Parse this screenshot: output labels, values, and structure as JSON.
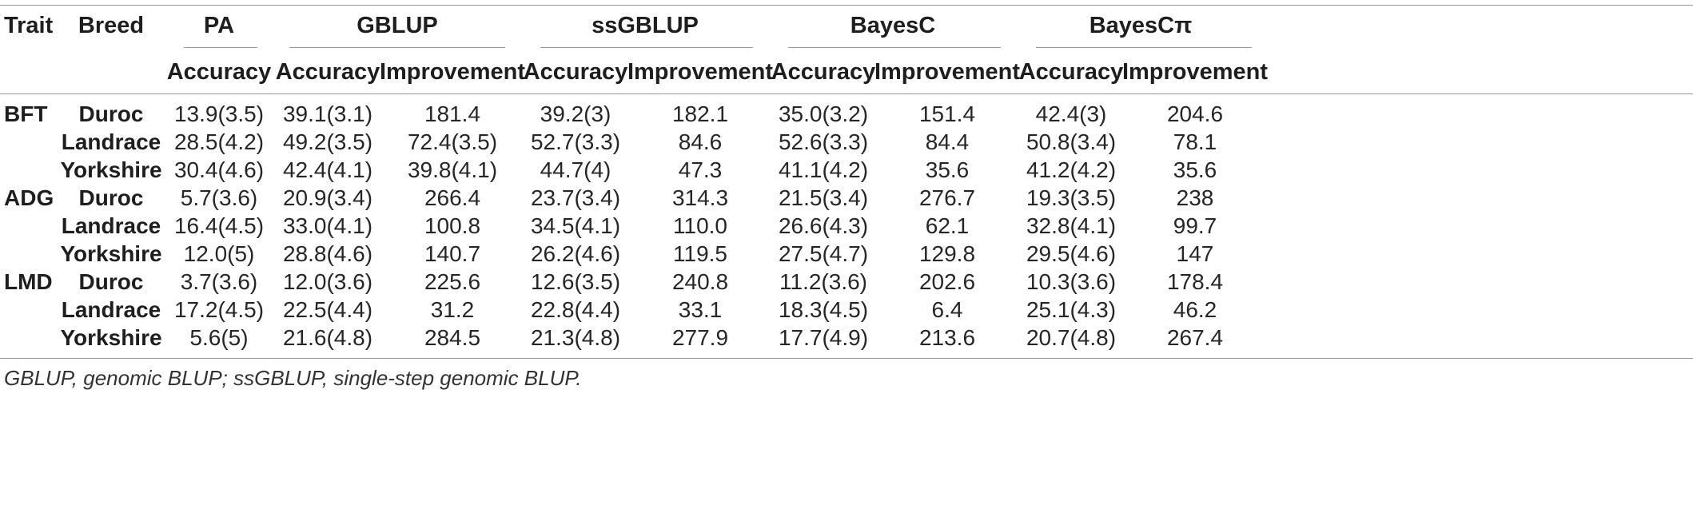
{
  "header": {
    "trait": "Trait",
    "breed": "Breed",
    "methods": [
      "PA",
      "GBLUP",
      "ssGBLUP",
      "BayesC",
      "BayesCπ"
    ],
    "subheaders": [
      "Accuracy",
      "Accuracy",
      "Improvement",
      "Accuracy",
      "Improvement",
      "Accuracy",
      "Improvement",
      "Accuracy",
      "Improvement"
    ]
  },
  "rows": [
    {
      "trait": "BFT",
      "breed": "Duroc",
      "cells": [
        "13.9(3.5)",
        "39.1(3.1)",
        "181.4",
        "39.2(3)",
        "182.1",
        "35.0(3.2)",
        "151.4",
        "42.4(3)",
        "204.6"
      ]
    },
    {
      "trait": "",
      "breed": "Landrace",
      "cells": [
        "28.5(4.2)",
        "49.2(3.5)",
        "72.4(3.5)",
        "52.7(3.3)",
        "84.6",
        "52.6(3.3)",
        "84.4",
        "50.8(3.4)",
        "78.1"
      ]
    },
    {
      "trait": "",
      "breed": "Yorkshire",
      "cells": [
        "30.4(4.6)",
        "42.4(4.1)",
        "39.8(4.1)",
        "44.7(4)",
        "47.3",
        "41.1(4.2)",
        "35.6",
        "41.2(4.2)",
        "35.6"
      ]
    },
    {
      "trait": "ADG",
      "breed": "Duroc",
      "cells": [
        "5.7(3.6)",
        "20.9(3.4)",
        "266.4",
        "23.7(3.4)",
        "314.3",
        "21.5(3.4)",
        "276.7",
        "19.3(3.5)",
        "238"
      ]
    },
    {
      "trait": "",
      "breed": "Landrace",
      "cells": [
        "16.4(4.5)",
        "33.0(4.1)",
        "100.8",
        "34.5(4.1)",
        "110.0",
        "26.6(4.3)",
        "62.1",
        "32.8(4.1)",
        "99.7"
      ]
    },
    {
      "trait": "",
      "breed": "Yorkshire",
      "cells": [
        "12.0(5)",
        "28.8(4.6)",
        "140.7",
        "26.2(4.6)",
        "119.5",
        "27.5(4.7)",
        "129.8",
        "29.5(4.6)",
        "147"
      ]
    },
    {
      "trait": "LMD",
      "breed": "Duroc",
      "cells": [
        "3.7(3.6)",
        "12.0(3.6)",
        "225.6",
        "12.6(3.5)",
        "240.8",
        "11.2(3.6)",
        "202.6",
        "10.3(3.6)",
        "178.4"
      ]
    },
    {
      "trait": "",
      "breed": "Landrace",
      "cells": [
        "17.2(4.5)",
        "22.5(4.4)",
        "31.2",
        "22.8(4.4)",
        "33.1",
        "18.3(4.5)",
        "6.4",
        "25.1(4.3)",
        "46.2"
      ]
    },
    {
      "trait": "",
      "breed": "Yorkshire",
      "cells": [
        "5.6(5)",
        "21.6(4.8)",
        "284.5",
        "21.3(4.8)",
        "277.9",
        "17.7(4.9)",
        "213.6",
        "20.7(4.8)",
        "267.4"
      ]
    }
  ],
  "footnote": "GBLUP, genomic BLUP; ssGBLUP, single-step genomic BLUP."
}
